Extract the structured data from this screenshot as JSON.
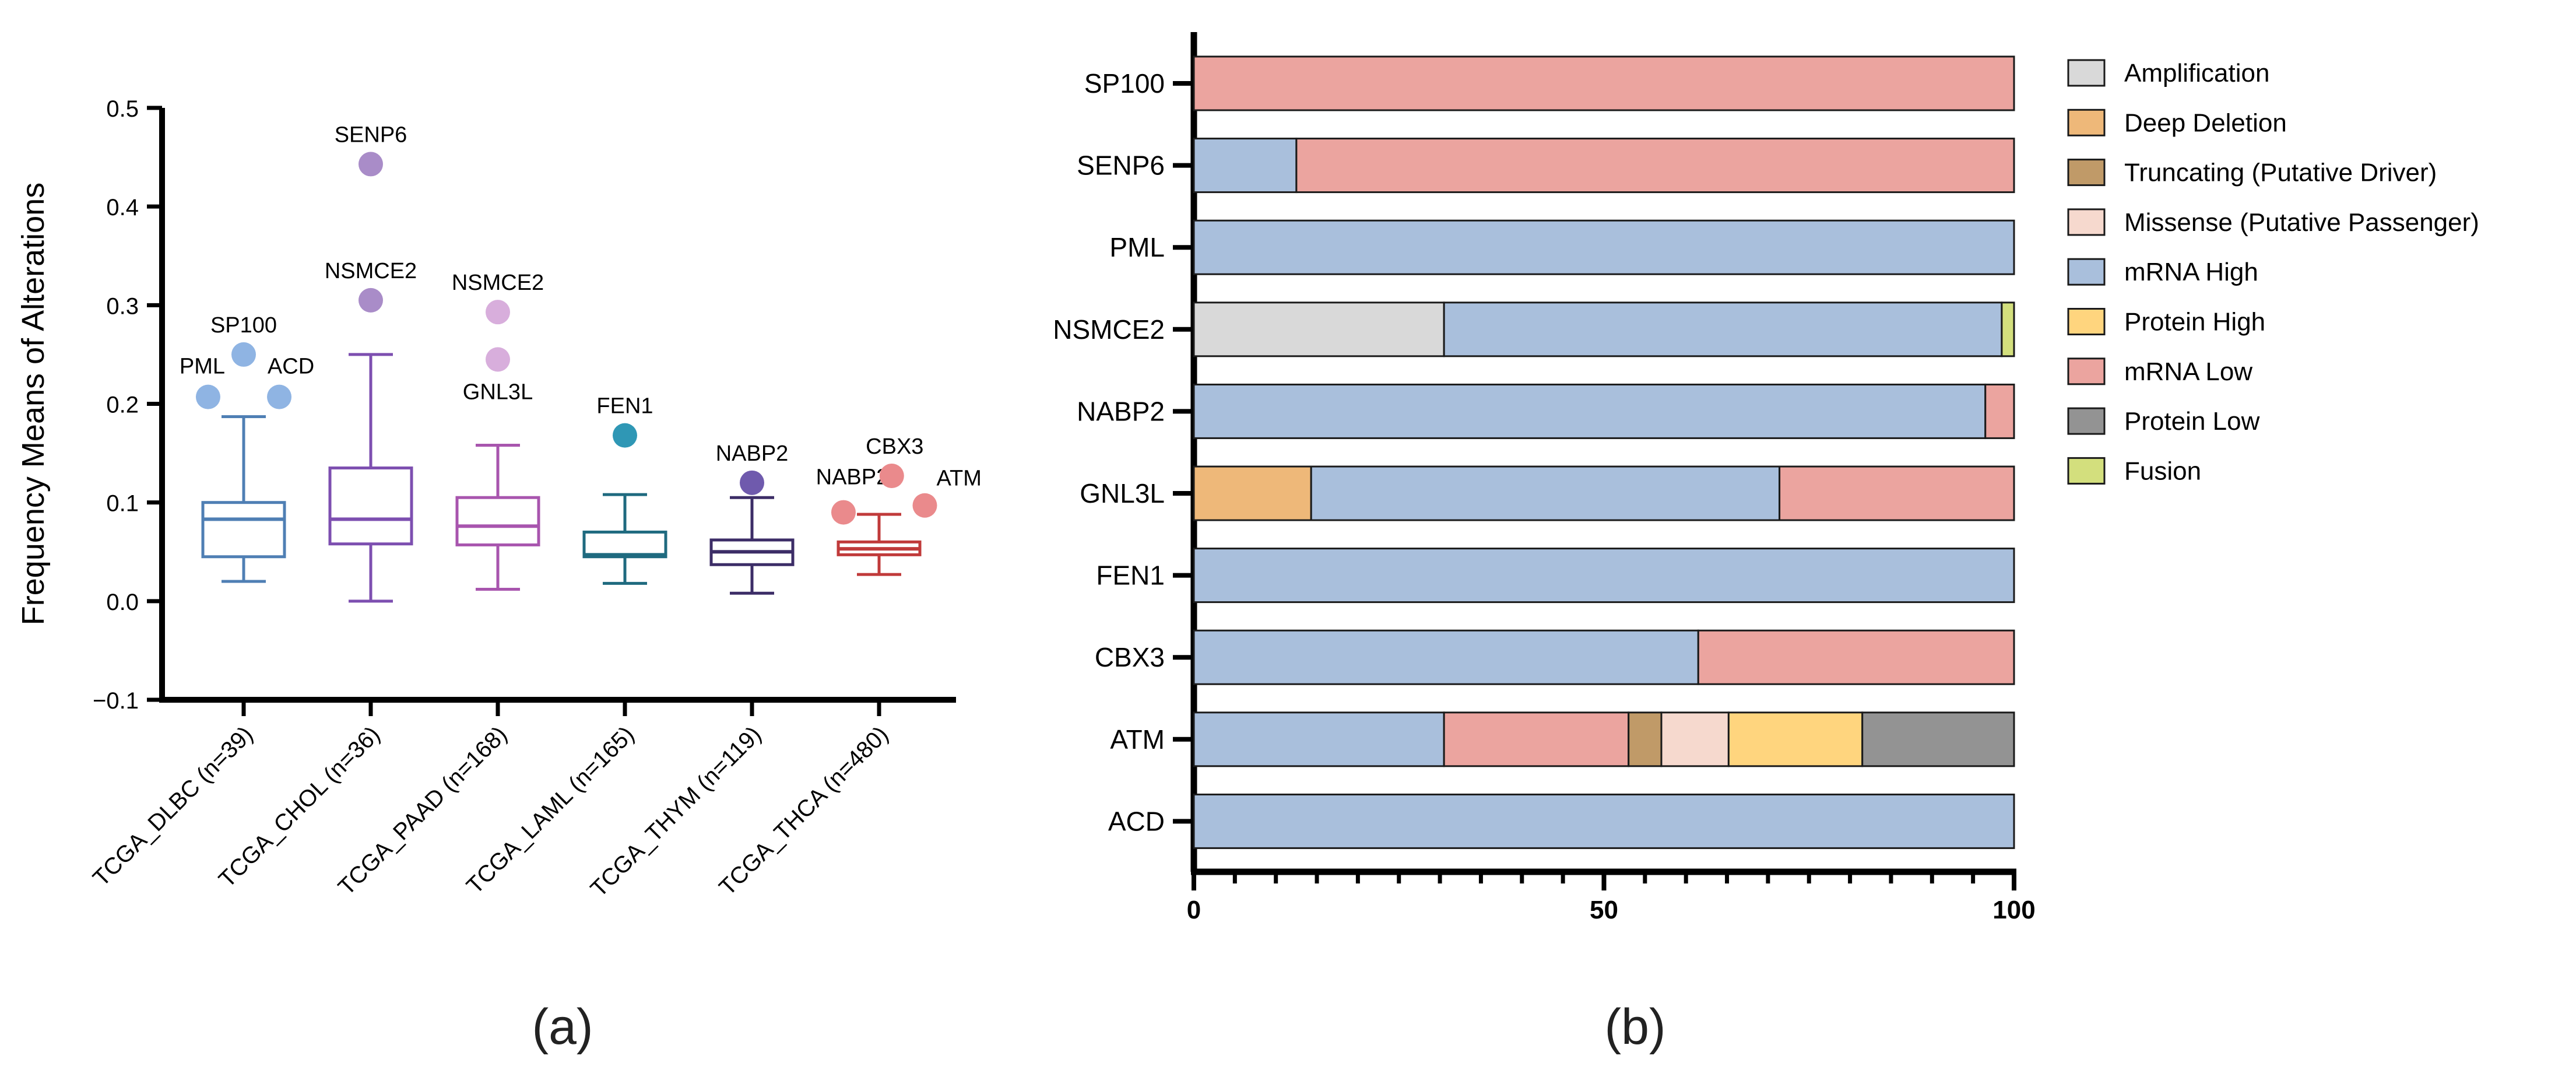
{
  "chart_data": [
    {
      "panel": "(a)",
      "type": "box",
      "ylabel": "Frequency Means of  Alterations",
      "xlabel": "",
      "ylim": [
        -0.1,
        0.5
      ],
      "yticks": [
        -0.1,
        0.0,
        0.1,
        0.2,
        0.3,
        0.4,
        0.5
      ],
      "ytick_labels": [
        "−0.1",
        "0.0",
        "0.1",
        "0.2",
        "0.3",
        "0.4",
        "0.5"
      ],
      "groups": [
        {
          "label": "TCGA_DLBC (n=39)",
          "color": "#4f7fb4",
          "outlier_color": "#8fb4e3",
          "whisker_low": 0.02,
          "q1": 0.045,
          "median": 0.083,
          "q3": 0.1,
          "whisker_high": 0.187,
          "outliers": [
            {
              "name": "PML",
              "value": 0.207,
              "dx": -0.28
            },
            {
              "name": "SP100",
              "value": 0.25,
              "dx": 0.0
            },
            {
              "name": "ACD",
              "value": 0.207,
              "dx": 0.28
            }
          ]
        },
        {
          "label": "TCGA_CHOL (n=36)",
          "color": "#7d4fb0",
          "outlier_color": "#a98cc8",
          "whisker_low": 0.0,
          "q1": 0.058,
          "median": 0.083,
          "q3": 0.135,
          "whisker_high": 0.25,
          "outliers": [
            {
              "name": "NSMCE2",
              "value": 0.305,
              "dx": 0.0
            },
            {
              "name": "SENP6",
              "value": 0.443,
              "dx": 0.0
            }
          ]
        },
        {
          "label": "TCGA_PAAD (n=168)",
          "color": "#a855ae",
          "outlier_color": "#d8aedc",
          "whisker_low": 0.012,
          "q1": 0.057,
          "median": 0.076,
          "q3": 0.105,
          "whisker_high": 0.158,
          "outliers": [
            {
              "name": "GNL3L",
              "value": 0.245,
              "dx": 0.0
            },
            {
              "name": "NSMCE2",
              "value": 0.293,
              "dx": 0.0
            }
          ]
        },
        {
          "label": "TCGA_LAML (n=165)",
          "color": "#1f6a7f",
          "outlier_color": "#2f97b5",
          "whisker_low": 0.018,
          "q1": 0.045,
          "median": 0.047,
          "q3": 0.07,
          "whisker_high": 0.108,
          "outliers": [
            {
              "name": "FEN1",
              "value": 0.168,
              "dx": 0.0
            }
          ]
        },
        {
          "label": "TCGA_THYM (n=119)",
          "color": "#3c2d67",
          "outlier_color": "#6f5aad",
          "whisker_low": 0.008,
          "q1": 0.037,
          "median": 0.05,
          "q3": 0.062,
          "whisker_high": 0.105,
          "outliers": [
            {
              "name": "NABP2",
              "value": 0.12,
              "dx": 0.0
            }
          ]
        },
        {
          "label": "TCGA_THCA (n=480)",
          "color": "#c03a3a",
          "outlier_color": "#ea8a8c",
          "whisker_low": 0.027,
          "q1": 0.047,
          "median": 0.053,
          "q3": 0.06,
          "whisker_high": 0.088,
          "outliers": [
            {
              "name": "NABP2",
              "value": 0.09,
              "dx": -0.28
            },
            {
              "name": "CBX3",
              "value": 0.127,
              "dx": 0.1
            },
            {
              "name": "ATM",
              "value": 0.097,
              "dx": 0.36
            }
          ]
        }
      ]
    },
    {
      "panel": "(b)",
      "type": "stacked-bar-horizontal",
      "xlim": [
        0,
        100
      ],
      "xtick_labels": [
        "0",
        "50",
        "100"
      ],
      "xticks": [
        0,
        50,
        100
      ],
      "minor_ticks": [
        5,
        10,
        15,
        20,
        25,
        30,
        35,
        40,
        45,
        55,
        60,
        65,
        70,
        75,
        80,
        85,
        90,
        95
      ],
      "legend_position": "right",
      "categories_legend": [
        {
          "name": "Amplification",
          "color": "#d9d9d9"
        },
        {
          "name": "Deep Deletion",
          "color": "#eeb879"
        },
        {
          "name": "Truncating (Putative Driver)",
          "color": "#c09a68"
        },
        {
          "name": "Missense (Putative Passenger)",
          "color": "#f6d9ce"
        },
        {
          "name": "mRNA High",
          "color": "#a9bfdc"
        },
        {
          "name": "Protein High",
          "color": "#ffd57e"
        },
        {
          "name": "mRNA Low",
          "color": "#eba49f"
        },
        {
          "name": "Protein Low",
          "color": "#939393"
        },
        {
          "name": "Fusion",
          "color": "#d3df7d"
        }
      ],
      "genes": [
        {
          "gene": "SP100",
          "segments": [
            {
              "type": "mRNA Low",
              "value": 100
            }
          ]
        },
        {
          "gene": "SENP6",
          "segments": [
            {
              "type": "mRNA High",
              "value": 12.5
            },
            {
              "type": "mRNA Low",
              "value": 87.5
            }
          ]
        },
        {
          "gene": "PML",
          "segments": [
            {
              "type": "mRNA High",
              "value": 100
            }
          ]
        },
        {
          "gene": "NSMCE2",
          "segments": [
            {
              "type": "Amplification",
              "value": 30.5
            },
            {
              "type": "mRNA High",
              "value": 68.0
            },
            {
              "type": "Fusion",
              "value": 1.5
            }
          ]
        },
        {
          "gene": "NABP2",
          "segments": [
            {
              "type": "mRNA High",
              "value": 96.5
            },
            {
              "type": "mRNA Low",
              "value": 3.5
            }
          ]
        },
        {
          "gene": "GNL3L",
          "segments": [
            {
              "type": "Deep Deletion",
              "value": 14.3
            },
            {
              "type": "mRNA High",
              "value": 57.1
            },
            {
              "type": "mRNA Low",
              "value": 28.6
            }
          ]
        },
        {
          "gene": "FEN1",
          "segments": [
            {
              "type": "mRNA High",
              "value": 100
            }
          ]
        },
        {
          "gene": "CBX3",
          "segments": [
            {
              "type": "mRNA High",
              "value": 61.5
            },
            {
              "type": "mRNA Low",
              "value": 38.5
            }
          ]
        },
        {
          "gene": "ATM",
          "segments": [
            {
              "type": "mRNA High",
              "value": 30.5
            },
            {
              "type": "mRNA Low",
              "value": 22.5
            },
            {
              "type": "Truncating (Putative Driver)",
              "value": 4.0
            },
            {
              "type": "Missense (Putative Passenger)",
              "value": 8.2
            },
            {
              "type": "Protein High",
              "value": 16.3
            },
            {
              "type": "Protein Low",
              "value": 18.5
            }
          ]
        },
        {
          "gene": "ACD",
          "segments": [
            {
              "type": "mRNA High",
              "value": 100
            }
          ]
        }
      ]
    }
  ]
}
